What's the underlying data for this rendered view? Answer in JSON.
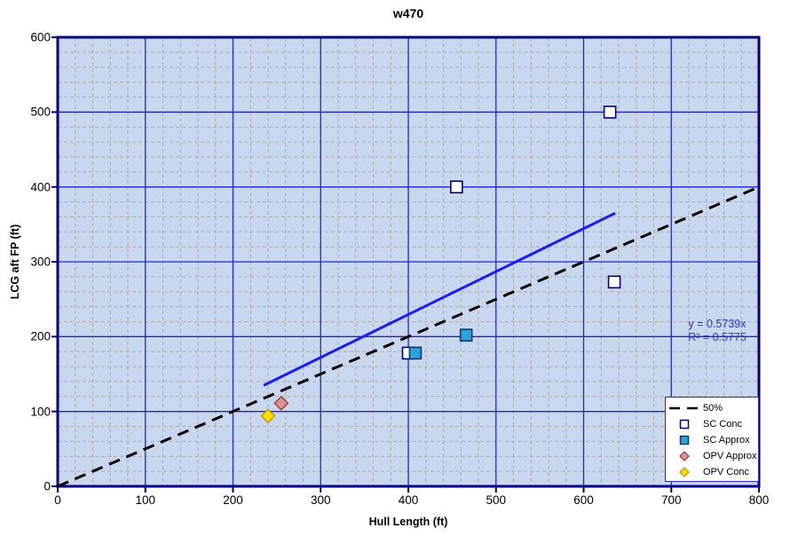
{
  "title": "w470",
  "axes": {
    "x": {
      "label": "Hull Length (ft)",
      "ticks": [
        0,
        100,
        200,
        300,
        400,
        500,
        600,
        700,
        800
      ]
    },
    "y": {
      "label": "LCG aft FP (ft)",
      "ticks": [
        0,
        100,
        200,
        300,
        400,
        500,
        600
      ]
    }
  },
  "annotation": {
    "equation": "y = 0.5739x",
    "r2": "R² = 0.5775",
    "color": "#3333cc"
  },
  "legend": {
    "items": [
      {
        "label": "50%",
        "marker": "dash",
        "fill": "none",
        "stroke": "#000000"
      },
      {
        "label": "SC Conc",
        "marker": "square",
        "fill": "#ffffff",
        "stroke": "#000080"
      },
      {
        "label": "SC Approx",
        "marker": "square",
        "fill": "#2ba3db",
        "stroke": "#17375e"
      },
      {
        "label": "OPV Approx",
        "marker": "diamond",
        "fill": "#d99694",
        "stroke": "#953735"
      },
      {
        "label": "OPV Conc",
        "marker": "diamond",
        "fill": "#ffe100",
        "stroke": "#bf8f00"
      }
    ]
  },
  "colors": {
    "plot_bg": "#c9d8ef",
    "major_grid": "#2424cd",
    "minor_grid": "#adadad",
    "axis": "#000080",
    "trendline": "#1a1aff",
    "fifty_pct_line": "#000000"
  },
  "chart_data": {
    "type": "scatter",
    "title": "w470",
    "xlabel": "Hull Length (ft)",
    "ylabel": "LCG aft FP (ft)",
    "xlim": [
      0,
      800
    ],
    "ylim": [
      0,
      600
    ],
    "major_unit": 100,
    "minor_unit": 20,
    "grid": {
      "major": true,
      "minor": true
    },
    "legend_position": "bottom-right",
    "series": [
      {
        "name": "SC Conc",
        "marker": "square",
        "fill": "#ffffff",
        "stroke": "#000080",
        "points": [
          [
            400,
            178
          ],
          [
            455,
            400
          ],
          [
            630,
            500
          ],
          [
            635,
            273
          ]
        ]
      },
      {
        "name": "SC Approx",
        "marker": "square",
        "fill": "#2ba3db",
        "stroke": "#17375e",
        "points": [
          [
            408,
            178
          ],
          [
            466,
            202
          ]
        ]
      },
      {
        "name": "OPV Approx",
        "marker": "diamond",
        "fill": "#d99694",
        "stroke": "#953735",
        "points": [
          [
            255,
            111
          ]
        ]
      },
      {
        "name": "OPV Conc",
        "marker": "diamond",
        "fill": "#ffe100",
        "stroke": "#bf8f00",
        "points": [
          [
            240,
            94
          ]
        ]
      }
    ],
    "lines": [
      {
        "name": "50%",
        "style": "dashed",
        "color": "#000000",
        "width": 3,
        "slope": 0.5,
        "x_range": [
          0,
          800
        ]
      },
      {
        "name": "Linear trendline",
        "style": "solid",
        "color": "#1a1aff",
        "width": 3,
        "slope": 0.5739,
        "x_range": [
          235,
          636
        ]
      }
    ],
    "trendline_equation": "y = 0.5739x",
    "trendline_r2": "R² = 0.5775"
  }
}
